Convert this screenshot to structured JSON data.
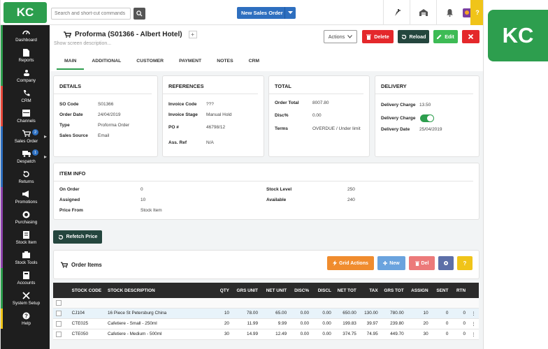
{
  "topbar": {
    "logo": "KC",
    "search_placeholder": "Search and short-cut commands",
    "new_sales_order": "New Sales Order",
    "help": "?"
  },
  "sidebar": {
    "items": [
      {
        "label": "Dashboard",
        "icon": "dashboard-icon",
        "accent": "#2d9e4e"
      },
      {
        "label": "Reports",
        "icon": "report-icon",
        "accent": "#2d9e4e"
      },
      {
        "label": "Company",
        "icon": "company-icon",
        "accent": "#2d9e4e"
      },
      {
        "label": "CRM",
        "icon": "phone-icon",
        "accent": "#e84a3c"
      },
      {
        "label": "Channels",
        "icon": "channels-icon",
        "accent": "#e84a3c"
      },
      {
        "label": "Sales Order",
        "icon": "cart-icon",
        "accent": "#2e6fbf",
        "badge": "2"
      },
      {
        "label": "Despatch",
        "icon": "truck-icon",
        "accent": "#2e6fbf",
        "badge": "1"
      },
      {
        "label": "Returns",
        "icon": "returns-icon",
        "accent": "#2e6fbf"
      },
      {
        "label": "Promotions",
        "icon": "megaphone-icon",
        "accent": "#8e44ad"
      },
      {
        "label": "Purchasing",
        "icon": "purchasing-icon",
        "accent": "#8e44ad"
      },
      {
        "label": "Stock Item",
        "icon": "stock-item-icon",
        "accent": "#8e44ad"
      },
      {
        "label": "Stock Tools",
        "icon": "stock-tools-icon",
        "accent": "#8e44ad"
      },
      {
        "label": "Accounts",
        "icon": "accounts-icon",
        "accent": "#2d9e4e"
      },
      {
        "label": "System Setup",
        "icon": "wrench-icon",
        "accent": "#2d9e4e"
      },
      {
        "label": "Help",
        "icon": "help-icon",
        "accent": "#f0c419"
      }
    ]
  },
  "header": {
    "title": "Proforma (S01366 - Albert Hotel)",
    "plus": "+",
    "description": "Show screen description...",
    "actions": "Actions",
    "delete": "Delete",
    "reload": "Reload",
    "edit": "Edit"
  },
  "tabs": [
    "MAIN",
    "ADDITIONAL",
    "CUSTOMER",
    "PAYMENT",
    "NOTES",
    "CRM"
  ],
  "details": {
    "title": "DETAILS",
    "rows": [
      {
        "label": "SO Code",
        "value": "S01366"
      },
      {
        "label": "Order Date",
        "value": "24/04/2019"
      },
      {
        "label": "Type",
        "value": "Proforma Order"
      },
      {
        "label": "Sales Source",
        "value": "Email"
      }
    ]
  },
  "references": {
    "title": "REFERENCES",
    "rows": [
      {
        "label": "Invoice Code",
        "value": "???"
      },
      {
        "label": "Invoice Stage",
        "value": "Manual Hold"
      },
      {
        "label": "PO #",
        "value": "46798/12"
      },
      {
        "label": "Ass. Ref",
        "value": "N/A"
      }
    ]
  },
  "total": {
    "title": "TOTAL",
    "rows": [
      {
        "label": "Order Total",
        "value": "8007.80"
      },
      {
        "label": "Disc%",
        "value": "0.00"
      },
      {
        "label": "Terms",
        "value": "OVERDUE / Under limit"
      }
    ]
  },
  "delivery": {
    "title": "DELIVERY",
    "rows": [
      {
        "label": "Delivery Charge",
        "value": "13.50"
      },
      {
        "label": "Delivery Charge",
        "value": "on"
      },
      {
        "label": "Delivery Date",
        "value": "25/04/2019"
      }
    ]
  },
  "item_info": {
    "title": "ITEM INFO",
    "left": [
      {
        "label": "On Order",
        "value": "0"
      },
      {
        "label": "Assigned",
        "value": "10"
      },
      {
        "label": "Price From",
        "value": "Stock Item"
      }
    ],
    "right": [
      {
        "label": "Stock Level",
        "value": "250"
      },
      {
        "label": "Available",
        "value": "240"
      }
    ]
  },
  "refetch_price": "Refetch Price",
  "order_items": {
    "title": "Order Items",
    "grid_actions": "Grid Actions",
    "new": "New",
    "del": "Del",
    "help": "?"
  },
  "table": {
    "columns": [
      "",
      "STOCK CODE",
      "STOCK DESCRIPTION",
      "QTY",
      "GRS UNIT",
      "NET UNIT",
      "DISC%",
      "DISCL",
      "NET TOT",
      "TAX",
      "GRS TOT",
      "ASSIGN",
      "SENT",
      "RTN"
    ],
    "rows": [
      [
        "CJ104",
        "16 Piece St Petersburg China",
        "10",
        "78.00",
        "65.00",
        "0.00",
        "0.00",
        "650.00",
        "130.00",
        "780.00",
        "10",
        "0",
        "0"
      ],
      [
        "CTE025",
        "Cafetiere - Small - 250ml",
        "20",
        "11.99",
        "9.99",
        "0.00",
        "0.00",
        "199.83",
        "39.97",
        "239.80",
        "20",
        "0",
        "0"
      ],
      [
        "CTE050",
        "Cafetiere - Medium - 500ml",
        "30",
        "14.99",
        "12.49",
        "0.00",
        "0.00",
        "374.75",
        "74.95",
        "449.70",
        "30",
        "0",
        "0"
      ]
    ]
  },
  "kc_badge": "KC"
}
